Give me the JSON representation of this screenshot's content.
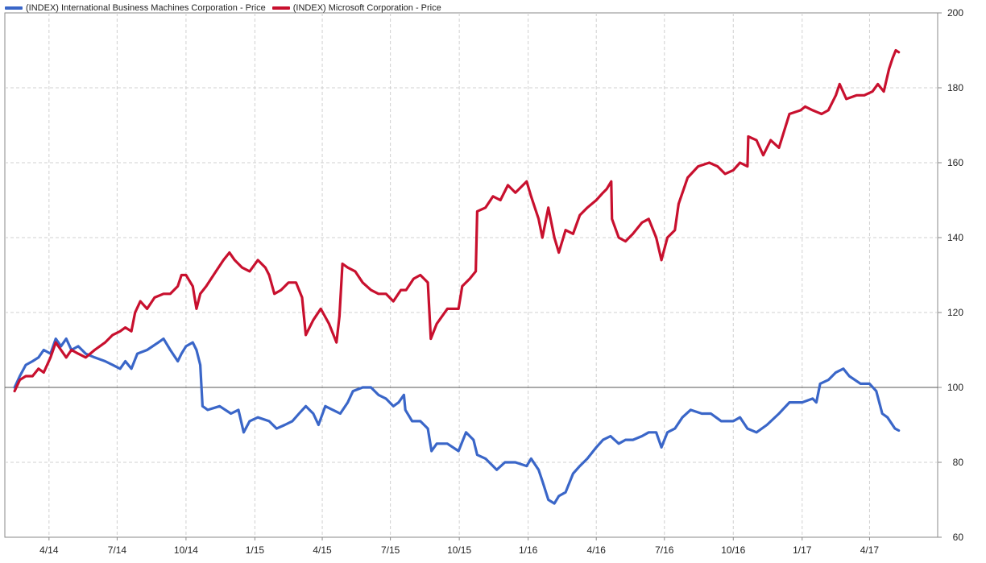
{
  "chart_data": {
    "type": "line",
    "x_ticks": [
      "4/14",
      "7/14",
      "10/14",
      "1/15",
      "4/15",
      "7/15",
      "10/15",
      "1/16",
      "4/16",
      "7/16",
      "10/16",
      "1/17",
      "4/17"
    ],
    "y_ticks": [
      60,
      80,
      100,
      120,
      140,
      160,
      180,
      200
    ],
    "ylim": [
      60,
      200
    ],
    "xlim": [
      "2014-02-01",
      "2017-07-01"
    ],
    "y_axis_side": "right",
    "grid": true,
    "baseline": 100,
    "legend_position": "top-left",
    "series": [
      {
        "name": "(INDEX) International Business Machines Corporation - Price",
        "color": "#3a66c8",
        "points": [
          [
            "2014-02-14",
            100
          ],
          [
            "2014-02-21",
            103
          ],
          [
            "2014-03-01",
            106
          ],
          [
            "2014-03-10",
            107
          ],
          [
            "2014-03-18",
            108
          ],
          [
            "2014-03-25",
            110
          ],
          [
            "2014-04-03",
            109
          ],
          [
            "2014-04-10",
            113
          ],
          [
            "2014-04-17",
            111
          ],
          [
            "2014-04-24",
            113
          ],
          [
            "2014-05-01",
            110
          ],
          [
            "2014-05-10",
            111
          ],
          [
            "2014-05-20",
            109
          ],
          [
            "2014-06-01",
            108
          ],
          [
            "2014-06-15",
            107
          ],
          [
            "2014-06-25",
            106
          ],
          [
            "2014-07-05",
            105
          ],
          [
            "2014-07-12",
            107
          ],
          [
            "2014-07-20",
            105
          ],
          [
            "2014-07-28",
            109
          ],
          [
            "2014-08-10",
            110
          ],
          [
            "2014-08-25",
            112
          ],
          [
            "2014-09-01",
            113
          ],
          [
            "2014-09-10",
            110
          ],
          [
            "2014-09-20",
            107
          ],
          [
            "2014-09-25",
            109
          ],
          [
            "2014-10-01",
            111
          ],
          [
            "2014-10-10",
            112
          ],
          [
            "2014-10-15",
            110
          ],
          [
            "2014-10-20",
            106
          ],
          [
            "2014-10-23",
            95
          ],
          [
            "2014-10-30",
            94
          ],
          [
            "2014-11-15",
            95
          ],
          [
            "2014-11-30",
            93
          ],
          [
            "2014-12-10",
            94
          ],
          [
            "2014-12-17",
            88
          ],
          [
            "2014-12-25",
            91
          ],
          [
            "2015-01-05",
            92
          ],
          [
            "2015-01-20",
            91
          ],
          [
            "2015-01-30",
            89
          ],
          [
            "2015-02-10",
            90
          ],
          [
            "2015-02-20",
            91
          ],
          [
            "2015-03-01",
            93
          ],
          [
            "2015-03-10",
            95
          ],
          [
            "2015-03-20",
            93
          ],
          [
            "2015-03-27",
            90
          ],
          [
            "2015-04-05",
            95
          ],
          [
            "2015-04-15",
            94
          ],
          [
            "2015-04-25",
            93
          ],
          [
            "2015-05-05",
            96
          ],
          [
            "2015-05-12",
            99
          ],
          [
            "2015-05-25",
            100
          ],
          [
            "2015-06-05",
            100
          ],
          [
            "2015-06-15",
            98
          ],
          [
            "2015-06-25",
            97
          ],
          [
            "2015-07-05",
            95
          ],
          [
            "2015-07-12",
            96
          ],
          [
            "2015-07-19",
            98
          ],
          [
            "2015-07-21",
            94
          ],
          [
            "2015-07-30",
            91
          ],
          [
            "2015-08-10",
            91
          ],
          [
            "2015-08-20",
            89
          ],
          [
            "2015-08-25",
            83
          ],
          [
            "2015-09-01",
            85
          ],
          [
            "2015-09-15",
            85
          ],
          [
            "2015-09-30",
            83
          ],
          [
            "2015-10-10",
            88
          ],
          [
            "2015-10-20",
            86
          ],
          [
            "2015-10-25",
            82
          ],
          [
            "2015-11-05",
            81
          ],
          [
            "2015-11-20",
            78
          ],
          [
            "2015-12-01",
            80
          ],
          [
            "2015-12-15",
            80
          ],
          [
            "2015-12-30",
            79
          ],
          [
            "2016-01-05",
            81
          ],
          [
            "2016-01-15",
            78
          ],
          [
            "2016-01-20",
            75
          ],
          [
            "2016-01-28",
            70
          ],
          [
            "2016-02-05",
            69
          ],
          [
            "2016-02-11",
            71
          ],
          [
            "2016-02-20",
            72
          ],
          [
            "2016-03-01",
            77
          ],
          [
            "2016-03-10",
            79
          ],
          [
            "2016-03-20",
            81
          ],
          [
            "2016-04-01",
            84
          ],
          [
            "2016-04-10",
            86
          ],
          [
            "2016-04-20",
            87
          ],
          [
            "2016-05-01",
            85
          ],
          [
            "2016-05-10",
            86
          ],
          [
            "2016-05-20",
            86
          ],
          [
            "2016-06-01",
            87
          ],
          [
            "2016-06-10",
            88
          ],
          [
            "2016-06-20",
            88
          ],
          [
            "2016-06-27",
            84
          ],
          [
            "2016-07-05",
            88
          ],
          [
            "2016-07-15",
            89
          ],
          [
            "2016-07-25",
            92
          ],
          [
            "2016-08-05",
            94
          ],
          [
            "2016-08-20",
            93
          ],
          [
            "2016-09-01",
            93
          ],
          [
            "2016-09-15",
            91
          ],
          [
            "2016-10-01",
            91
          ],
          [
            "2016-10-10",
            92
          ],
          [
            "2016-10-20",
            89
          ],
          [
            "2016-11-01",
            88
          ],
          [
            "2016-11-15",
            90
          ],
          [
            "2016-12-01",
            93
          ],
          [
            "2016-12-15",
            96
          ],
          [
            "2017-01-01",
            96
          ],
          [
            "2017-01-15",
            97
          ],
          [
            "2017-01-20",
            96
          ],
          [
            "2017-01-25",
            101
          ],
          [
            "2017-02-05",
            102
          ],
          [
            "2017-02-15",
            104
          ],
          [
            "2017-02-25",
            105
          ],
          [
            "2017-03-05",
            103
          ],
          [
            "2017-03-20",
            101
          ],
          [
            "2017-04-01",
            101
          ],
          [
            "2017-04-10",
            99
          ],
          [
            "2017-04-18",
            93
          ],
          [
            "2017-04-25",
            92
          ],
          [
            "2017-05-05",
            89
          ],
          [
            "2017-05-10",
            88.5
          ]
        ]
      },
      {
        "name": "(INDEX) Microsoft Corporation - Price",
        "color": "#c8102e",
        "points": [
          [
            "2014-02-14",
            99
          ],
          [
            "2014-02-21",
            102
          ],
          [
            "2014-03-01",
            103
          ],
          [
            "2014-03-10",
            103
          ],
          [
            "2014-03-18",
            105
          ],
          [
            "2014-03-25",
            104
          ],
          [
            "2014-04-03",
            108
          ],
          [
            "2014-04-10",
            112
          ],
          [
            "2014-04-17",
            110
          ],
          [
            "2014-04-24",
            108
          ],
          [
            "2014-05-01",
            110
          ],
          [
            "2014-05-10",
            109
          ],
          [
            "2014-05-20",
            108
          ],
          [
            "2014-06-01",
            110
          ],
          [
            "2014-06-15",
            112
          ],
          [
            "2014-06-25",
            114
          ],
          [
            "2014-07-05",
            115
          ],
          [
            "2014-07-12",
            116
          ],
          [
            "2014-07-20",
            115
          ],
          [
            "2014-07-25",
            120
          ],
          [
            "2014-08-01",
            123
          ],
          [
            "2014-08-10",
            121
          ],
          [
            "2014-08-20",
            124
          ],
          [
            "2014-09-01",
            125
          ],
          [
            "2014-09-10",
            125
          ],
          [
            "2014-09-20",
            127
          ],
          [
            "2014-09-25",
            130
          ],
          [
            "2014-10-01",
            130
          ],
          [
            "2014-10-10",
            127
          ],
          [
            "2014-10-15",
            121
          ],
          [
            "2014-10-20",
            125
          ],
          [
            "2014-10-28",
            127
          ],
          [
            "2014-11-10",
            131
          ],
          [
            "2014-11-20",
            134
          ],
          [
            "2014-11-28",
            136
          ],
          [
            "2014-12-05",
            134
          ],
          [
            "2014-12-15",
            132
          ],
          [
            "2014-12-25",
            131
          ],
          [
            "2015-01-05",
            134
          ],
          [
            "2015-01-15",
            132
          ],
          [
            "2015-01-20",
            130
          ],
          [
            "2015-01-27",
            125
          ],
          [
            "2015-02-05",
            126
          ],
          [
            "2015-02-15",
            128
          ],
          [
            "2015-02-25",
            128
          ],
          [
            "2015-03-05",
            124
          ],
          [
            "2015-03-10",
            114
          ],
          [
            "2015-03-20",
            118
          ],
          [
            "2015-03-30",
            121
          ],
          [
            "2015-04-10",
            117
          ],
          [
            "2015-04-20",
            112
          ],
          [
            "2015-04-24",
            119
          ],
          [
            "2015-04-28",
            133
          ],
          [
            "2015-05-05",
            132
          ],
          [
            "2015-05-15",
            131
          ],
          [
            "2015-05-25",
            128
          ],
          [
            "2015-06-05",
            126
          ],
          [
            "2015-06-15",
            125
          ],
          [
            "2015-06-25",
            125
          ],
          [
            "2015-07-05",
            123
          ],
          [
            "2015-07-15",
            126
          ],
          [
            "2015-07-22",
            126
          ],
          [
            "2015-08-01",
            129
          ],
          [
            "2015-08-10",
            130
          ],
          [
            "2015-08-20",
            128
          ],
          [
            "2015-08-24",
            113
          ],
          [
            "2015-09-01",
            117
          ],
          [
            "2015-09-15",
            121
          ],
          [
            "2015-09-30",
            121
          ],
          [
            "2015-10-05",
            127
          ],
          [
            "2015-10-15",
            129
          ],
          [
            "2015-10-23",
            131
          ],
          [
            "2015-10-25",
            147
          ],
          [
            "2015-11-05",
            148
          ],
          [
            "2015-11-15",
            151
          ],
          [
            "2015-11-25",
            150
          ],
          [
            "2015-12-05",
            154
          ],
          [
            "2015-12-15",
            152
          ],
          [
            "2015-12-30",
            155
          ],
          [
            "2016-01-05",
            151
          ],
          [
            "2016-01-15",
            145
          ],
          [
            "2016-01-20",
            140
          ],
          [
            "2016-01-28",
            148
          ],
          [
            "2016-02-05",
            140
          ],
          [
            "2016-02-11",
            136
          ],
          [
            "2016-02-20",
            142
          ],
          [
            "2016-03-01",
            141
          ],
          [
            "2016-03-10",
            146
          ],
          [
            "2016-03-20",
            148
          ],
          [
            "2016-04-01",
            150
          ],
          [
            "2016-04-10",
            152
          ],
          [
            "2016-04-15",
            153
          ],
          [
            "2016-04-21",
            155
          ],
          [
            "2016-04-22",
            145
          ],
          [
            "2016-05-01",
            140
          ],
          [
            "2016-05-10",
            139
          ],
          [
            "2016-05-20",
            141
          ],
          [
            "2016-06-01",
            144
          ],
          [
            "2016-06-10",
            145
          ],
          [
            "2016-06-20",
            140
          ],
          [
            "2016-06-27",
            134
          ],
          [
            "2016-07-05",
            140
          ],
          [
            "2016-07-15",
            142
          ],
          [
            "2016-07-20",
            149
          ],
          [
            "2016-08-01",
            156
          ],
          [
            "2016-08-15",
            159
          ],
          [
            "2016-08-30",
            160
          ],
          [
            "2016-09-10",
            159
          ],
          [
            "2016-09-20",
            157
          ],
          [
            "2016-10-01",
            158
          ],
          [
            "2016-10-10",
            160
          ],
          [
            "2016-10-20",
            159
          ],
          [
            "2016-10-21",
            167
          ],
          [
            "2016-11-01",
            166
          ],
          [
            "2016-11-10",
            162
          ],
          [
            "2016-11-20",
            166
          ],
          [
            "2016-12-01",
            164
          ],
          [
            "2016-12-15",
            173
          ],
          [
            "2016-12-30",
            174
          ],
          [
            "2017-01-05",
            175
          ],
          [
            "2017-01-15",
            174
          ],
          [
            "2017-01-27",
            173
          ],
          [
            "2017-02-05",
            174
          ],
          [
            "2017-02-15",
            178
          ],
          [
            "2017-02-20",
            181
          ],
          [
            "2017-03-01",
            177
          ],
          [
            "2017-03-15",
            178
          ],
          [
            "2017-03-25",
            178
          ],
          [
            "2017-04-05",
            179
          ],
          [
            "2017-04-12",
            181
          ],
          [
            "2017-04-20",
            179
          ],
          [
            "2017-04-27",
            185
          ],
          [
            "2017-05-02",
            188
          ],
          [
            "2017-05-06",
            190
          ],
          [
            "2017-05-10",
            189.5
          ]
        ]
      }
    ]
  }
}
